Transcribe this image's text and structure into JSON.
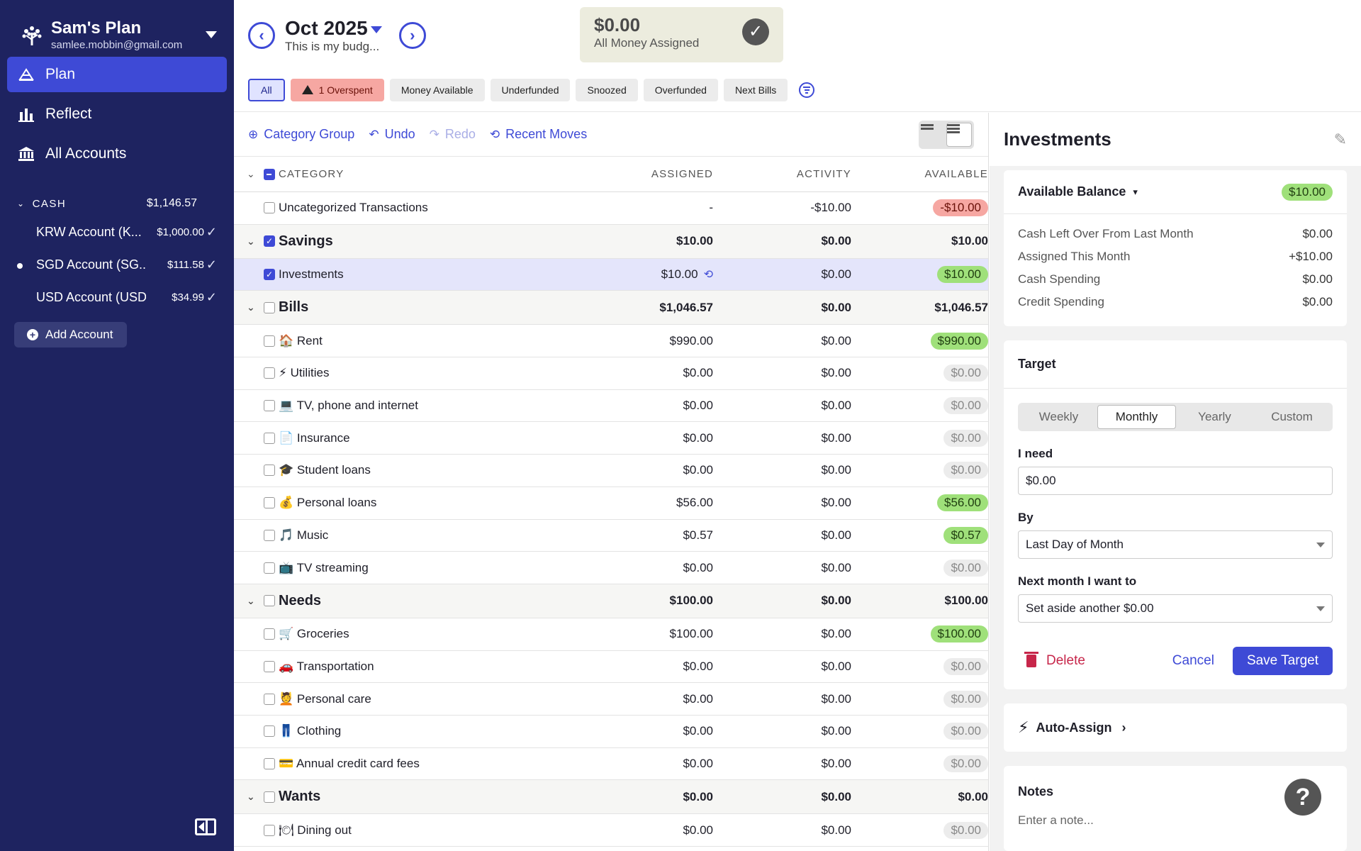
{
  "sidebar": {
    "budget_name": "Sam's Plan",
    "email": "samlee.mobbin@gmail.com",
    "nav": [
      {
        "label": "Plan",
        "icon": "plan-icon"
      },
      {
        "label": "Reflect",
        "icon": "reflect-icon"
      },
      {
        "label": "All Accounts",
        "icon": "bank-icon"
      }
    ],
    "cash_label": "CASH",
    "cash_total": "$1,146.57",
    "accounts": [
      {
        "name": "KRW Account (K...",
        "balance": "$1,000.00"
      },
      {
        "name": "SGD Account (SG...",
        "balance": "$111.58"
      },
      {
        "name": "USD Account (USD...",
        "balance": "$34.99"
      }
    ],
    "add_account": "Add Account"
  },
  "topbar": {
    "month": "Oct 2025",
    "subtitle": "This is my budg...",
    "assigned_value": "$0.00",
    "assigned_label": "All Money Assigned",
    "filters": [
      "All",
      "1 Overspent",
      "Money Available",
      "Underfunded",
      "Snoozed",
      "Overfunded",
      "Next Bills"
    ]
  },
  "toolbar": {
    "category_group": "Category Group",
    "undo": "Undo",
    "redo": "Redo",
    "recent_moves": "Recent Moves"
  },
  "grid": {
    "headers": {
      "category": "CATEGORY",
      "assigned": "ASSIGNED",
      "activity": "ACTIVITY",
      "available": "AVAILABLE"
    },
    "rows": [
      {
        "type": "item",
        "name": "Uncategorized Transactions",
        "assigned": "-",
        "activity": "-$10.00",
        "available": "-$10.00",
        "status": "red"
      },
      {
        "type": "group",
        "name": "Savings",
        "assigned": "$10.00",
        "activity": "$0.00",
        "available": "$10.00",
        "checked": true
      },
      {
        "type": "item",
        "name": "Investments",
        "assigned": "$10.00",
        "activity": "$0.00",
        "available": "$10.00",
        "status": "green",
        "checked": true,
        "selected": true
      },
      {
        "type": "group",
        "name": "Bills",
        "assigned": "$1,046.57",
        "activity": "$0.00",
        "available": "$1,046.57"
      },
      {
        "type": "item",
        "name": "🏠 Rent",
        "assigned": "$990.00",
        "activity": "$0.00",
        "available": "$990.00",
        "status": "green"
      },
      {
        "type": "item",
        "name": "⚡ Utilities",
        "assigned": "$0.00",
        "activity": "$0.00",
        "available": "$0.00",
        "status": "gray"
      },
      {
        "type": "item",
        "name": "💻 TV, phone and internet",
        "assigned": "$0.00",
        "activity": "$0.00",
        "available": "$0.00",
        "status": "gray"
      },
      {
        "type": "item",
        "name": "📄 Insurance",
        "assigned": "$0.00",
        "activity": "$0.00",
        "available": "$0.00",
        "status": "gray"
      },
      {
        "type": "item",
        "name": "🎓 Student loans",
        "assigned": "$0.00",
        "activity": "$0.00",
        "available": "$0.00",
        "status": "gray"
      },
      {
        "type": "item",
        "name": "💰 Personal loans",
        "assigned": "$56.00",
        "activity": "$0.00",
        "available": "$56.00",
        "status": "green"
      },
      {
        "type": "item",
        "name": "🎵 Music",
        "assigned": "$0.57",
        "activity": "$0.00",
        "available": "$0.57",
        "status": "green"
      },
      {
        "type": "item",
        "name": "📺 TV streaming",
        "assigned": "$0.00",
        "activity": "$0.00",
        "available": "$0.00",
        "status": "gray"
      },
      {
        "type": "group",
        "name": "Needs",
        "assigned": "$100.00",
        "activity": "$0.00",
        "available": "$100.00"
      },
      {
        "type": "item",
        "name": "🛒 Groceries",
        "assigned": "$100.00",
        "activity": "$0.00",
        "available": "$100.00",
        "status": "green"
      },
      {
        "type": "item",
        "name": "🚗 Transportation",
        "assigned": "$0.00",
        "activity": "$0.00",
        "available": "$0.00",
        "status": "gray"
      },
      {
        "type": "item",
        "name": "💆 Personal care",
        "assigned": "$0.00",
        "activity": "$0.00",
        "available": "$0.00",
        "status": "gray"
      },
      {
        "type": "item",
        "name": "👖 Clothing",
        "assigned": "$0.00",
        "activity": "$0.00",
        "available": "$0.00",
        "status": "gray"
      },
      {
        "type": "item",
        "name": "💳 Annual credit card fees",
        "assigned": "$0.00",
        "activity": "$0.00",
        "available": "$0.00",
        "status": "gray"
      },
      {
        "type": "group",
        "name": "Wants",
        "assigned": "$0.00",
        "activity": "$0.00",
        "available": "$0.00"
      },
      {
        "type": "item",
        "name": "🍽 Dining out",
        "assigned": "$0.00",
        "activity": "$0.00",
        "available": "$0.00",
        "status": "gray"
      }
    ]
  },
  "inspector": {
    "title": "Investments",
    "available_balance_label": "Available Balance",
    "available_balance": "$10.00",
    "lines": [
      {
        "label": "Cash Left Over From Last Month",
        "value": "$0.00"
      },
      {
        "label": "Assigned This Month",
        "value": "+$10.00"
      },
      {
        "label": "Cash Spending",
        "value": "$0.00"
      },
      {
        "label": "Credit Spending",
        "value": "$0.00"
      }
    ],
    "target_label": "Target",
    "periods": [
      "Weekly",
      "Monthly",
      "Yearly",
      "Custom"
    ],
    "need_label": "I need",
    "need_value": "$0.00",
    "by_label": "By",
    "by_value": "Last Day of Month",
    "next_label": "Next month I want to",
    "next_value": "Set aside another $0.00",
    "delete": "Delete",
    "cancel": "Cancel",
    "save": "Save Target",
    "auto_assign": "Auto-Assign",
    "notes_label": "Notes",
    "notes_placeholder": "Enter a note..."
  },
  "help": "?"
}
